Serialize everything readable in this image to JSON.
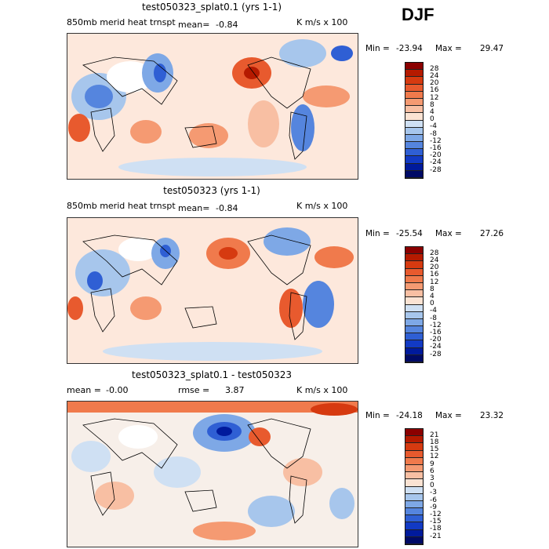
{
  "season": "DJF",
  "panels": [
    {
      "title": "test050323_splat0.1 (yrs 1-1)",
      "left_label": "850mb merid heat trnspt",
      "mean_label": "mean=",
      "mean_value": "-0.84",
      "units": "K m/s x 100",
      "min_label": "Min =",
      "min_value": "-23.94",
      "max_label": "Max =",
      "max_value": "29.47",
      "levels": [
        "28",
        "24",
        "20",
        "16",
        "12",
        "8",
        "4",
        "0",
        "-4",
        "-8",
        "-12",
        "-16",
        "-20",
        "-24",
        "-28"
      ]
    },
    {
      "title": "test050323 (yrs 1-1)",
      "left_label": "850mb merid heat trnspt",
      "mean_label": "mean=",
      "mean_value": "-0.84",
      "units": "K m/s x 100",
      "min_label": "Min =",
      "min_value": "-25.54",
      "max_label": "Max =",
      "max_value": "27.26",
      "levels": [
        "28",
        "24",
        "20",
        "16",
        "12",
        "8",
        "4",
        "0",
        "-4",
        "-8",
        "-12",
        "-16",
        "-20",
        "-24",
        "-28"
      ]
    },
    {
      "title": "test050323_splat0.1 - test050323",
      "left_label": "mean =",
      "mean_label": "",
      "mean_value": "-0.00",
      "rmse_label": "rmse =",
      "rmse_value": "3.87",
      "units": "K m/s x 100",
      "min_label": "Min =",
      "min_value": "-24.18",
      "max_label": "Max =",
      "max_value": "23.32",
      "levels": [
        "21",
        "18",
        "15",
        "12",
        "9",
        "6",
        "3",
        "0",
        "-3",
        "-6",
        "-9",
        "-12",
        "-15",
        "-18",
        "-21"
      ]
    }
  ],
  "colors": [
    "#8b0000",
    "#b51a00",
    "#d63a10",
    "#e85a2e",
    "#f07a4c",
    "#f59a72",
    "#f8bfa3",
    "#fbe3d3",
    "#ffffff",
    "#cfe0f3",
    "#a7c6ec",
    "#7ea8e6",
    "#5585de",
    "#2f5fd4",
    "#123ac4",
    "#001a9c",
    "#000a66"
  ]
}
